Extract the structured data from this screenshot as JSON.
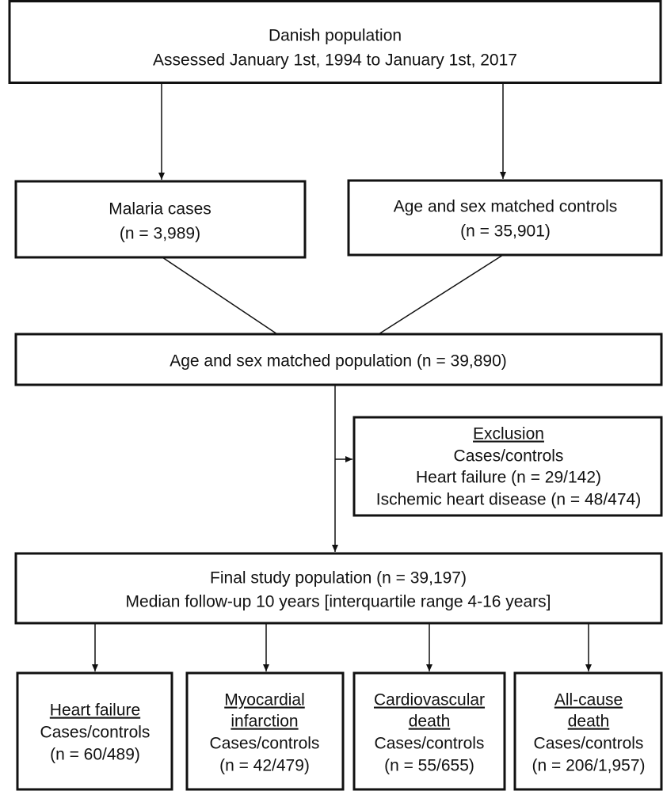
{
  "nodes": [
    {
      "lines": [
        "Danish population",
        "Assessed January 1st, 1994 to January 1st, 2017"
      ]
    },
    {
      "lines": [
        "Malaria cases",
        "(n = 3,989)"
      ]
    },
    {
      "lines": [
        "Age and sex matched controls",
        "(n = 35,901)"
      ]
    },
    {
      "lines": [
        "Age and sex matched population (n = 39,890)"
      ]
    },
    {
      "title": "Exclusion",
      "lines": [
        "Cases/controls",
        "Heart failure (n = 29/142)",
        "Ischemic heart disease (n = 48/474)"
      ]
    },
    {
      "lines": [
        "Final study population (n = 39,197)",
        "Median follow-up 10 years [interquartile range 4-16 years]"
      ]
    },
    {
      "title": [
        "Heart failure"
      ],
      "lines": [
        "Cases/controls",
        "(n = 60/489)"
      ]
    },
    {
      "title": [
        "Myocardial",
        "infarction"
      ],
      "lines": [
        "Cases/controls",
        "(n = 42/479)"
      ]
    },
    {
      "title": [
        "Cardiovascular",
        "death"
      ],
      "lines": [
        "Cases/controls",
        "(n = 55/655)"
      ]
    },
    {
      "title": [
        "All-cause",
        "death"
      ],
      "lines": [
        "Cases/controls",
        "(n = 206/1,957)"
      ]
    }
  ]
}
